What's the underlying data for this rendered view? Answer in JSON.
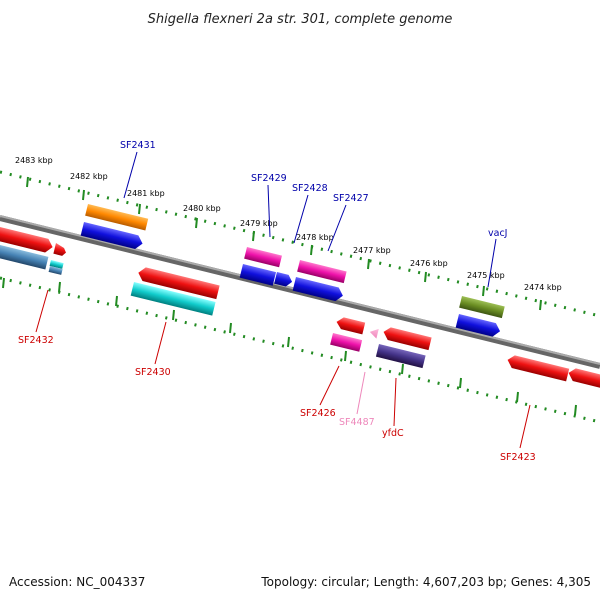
{
  "title": "Shigella flexneri 2a str. 301, complete genome",
  "footer": {
    "accession": "Accession: NC_004337",
    "summary": "Topology: circular; Length: 4,607,203 bp; Genes: 4,305"
  },
  "ruler_ticks": [
    {
      "label": "2483 kbp"
    },
    {
      "label": "2482 kbp"
    },
    {
      "label": "2481 kbp"
    },
    {
      "label": "2480 kbp"
    },
    {
      "label": "2479 kbp"
    },
    {
      "label": "2478 kbp"
    },
    {
      "label": "2477 kbp"
    },
    {
      "label": "2476 kbp"
    },
    {
      "label": "2475 kbp"
    },
    {
      "label": "2474 kbp"
    }
  ],
  "genes": {
    "forward": [
      {
        "label": "SF2431",
        "color": "#0000aa"
      },
      {
        "label": "SF2429",
        "color": "#0000aa"
      },
      {
        "label": "SF2428",
        "color": "#0000aa"
      },
      {
        "label": "SF2427",
        "color": "#0000aa"
      },
      {
        "label": "vacJ",
        "color": "#0000aa"
      }
    ],
    "reverse": [
      {
        "label": "SF2432",
        "color": "#cc0000"
      },
      {
        "label": "SF2430",
        "color": "#cc0000"
      },
      {
        "label": "SF2426",
        "color": "#cc0000"
      },
      {
        "label": "SF4487",
        "color": "#ee88bb"
      },
      {
        "label": "yfdC",
        "color": "#cc0000"
      },
      {
        "label": "SF2423",
        "color": "#cc0000"
      }
    ]
  },
  "colors": {
    "backbone": "#888888",
    "ruler_dot": "#228b22",
    "feature_red": "#ee1111",
    "feature_blue": "#1010dd",
    "feature_orange": "#ff8800",
    "feature_cyan": "#11cccc",
    "feature_magenta": "#ee11aa",
    "feature_olive": "#6b8e23",
    "feature_slate": "#443388",
    "feature_steel": "#4682b4"
  }
}
